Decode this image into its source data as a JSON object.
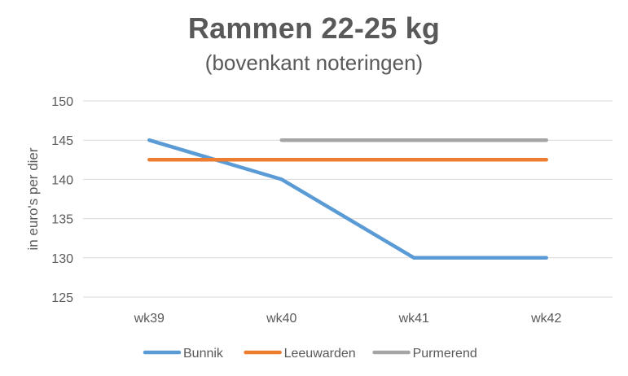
{
  "chart_data": {
    "type": "line",
    "title": "Rammen 22-25 kg",
    "subtitle": "(bovenkant noteringen)",
    "xlabel": "",
    "ylabel": "in euro's per dier",
    "categories": [
      "wk39",
      "wk40",
      "wk41",
      "wk42"
    ],
    "ylim": [
      125,
      150
    ],
    "yticks": [
      125,
      130,
      135,
      140,
      145,
      150
    ],
    "grid": true,
    "legend_position": "bottom",
    "series": [
      {
        "name": "Bunnik",
        "color": "#5B9BD5",
        "values": [
          145,
          140,
          130,
          130
        ]
      },
      {
        "name": "Leeuwarden",
        "color": "#ED7D31",
        "values": [
          142.5,
          142.5,
          142.5,
          142.5
        ]
      },
      {
        "name": "Purmerend",
        "color": "#A5A5A5",
        "values": [
          null,
          145,
          145,
          145
        ]
      }
    ]
  }
}
